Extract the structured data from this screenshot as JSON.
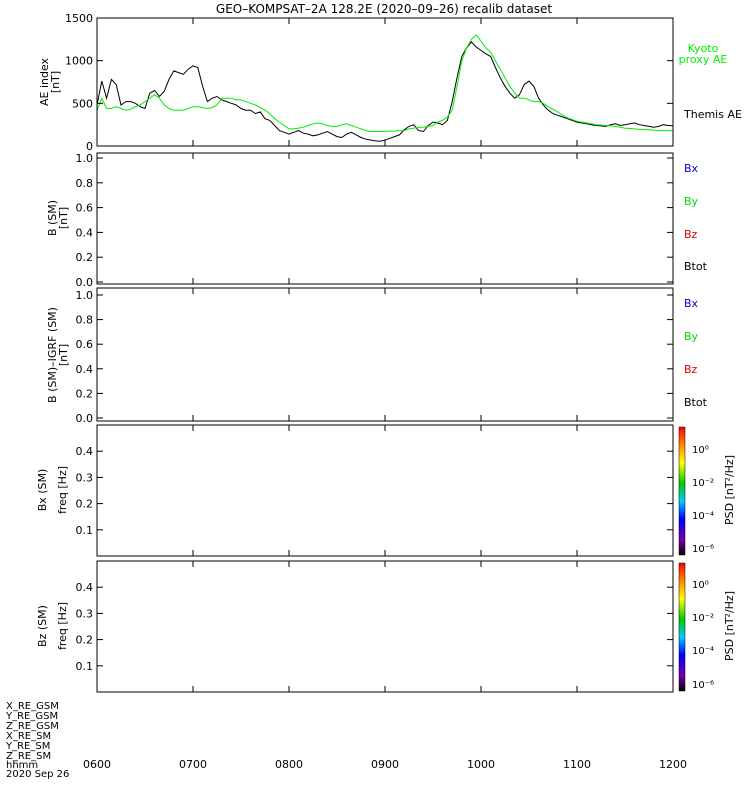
{
  "title": "GEO–KOMPSAT–2A 128.2E (2020–09–26) recalib dataset",
  "x_axis": {
    "tick_labels": [
      "0600",
      "0700",
      "0800",
      "0900",
      "1000",
      "1100",
      "1200"
    ],
    "row_labels": [
      "X_RE_GSM",
      "Y_RE_GSM",
      "Z_RE_GSM",
      "X_RE_SM",
      "Y_RE_SM",
      "Z_RE_SM",
      "hhmm",
      "2020 Sep 26"
    ]
  },
  "panels": {
    "ae": {
      "ylabel": "AE index",
      "yunit": "[nT]",
      "ticks": [
        "0",
        "500",
        "1000",
        "1500"
      ],
      "legend": [
        {
          "text": "Kyoto",
          "color": "#00ee00"
        },
        {
          "text": "proxy AE",
          "color": "#00ee00"
        },
        {
          "text": "Themis AE",
          "color": "#000000"
        }
      ]
    },
    "b": {
      "ylabel": "B (SM)",
      "yunit": "[nT]",
      "ticks": [
        "0.0",
        "0.2",
        "0.4",
        "0.6",
        "0.8",
        "1.0"
      ],
      "legend": [
        {
          "text": "Bx",
          "color": "#0000cc"
        },
        {
          "text": "By",
          "color": "#00dd00"
        },
        {
          "text": "Bz",
          "color": "#dd0000"
        },
        {
          "text": "Btot",
          "color": "#000000"
        }
      ]
    },
    "bigrf": {
      "ylabel": "B (SM)–IGRF (SM)",
      "yunit": "[nT]",
      "ticks": [
        "0.0",
        "0.2",
        "0.4",
        "0.6",
        "0.8",
        "1.0"
      ],
      "legend": [
        {
          "text": "Bx",
          "color": "#0000cc"
        },
        {
          "text": "By",
          "color": "#00dd00"
        },
        {
          "text": "Bz",
          "color": "#dd0000"
        },
        {
          "text": "Btot",
          "color": "#000000"
        }
      ]
    },
    "bx_spec": {
      "ylabel1": "Bx (SM)",
      "ylabel2": "freq [Hz]",
      "ticks": [
        "0.1",
        "0.2",
        "0.3",
        "0.4"
      ],
      "colorbar_label": "PSD [nT²/Hz]",
      "colorbar_ticks": [
        "10⁰",
        "10⁻²",
        "10⁻⁴",
        "10⁻⁶"
      ]
    },
    "bz_spec": {
      "ylabel1": "Bz (SM)",
      "ylabel2": "freq [Hz]",
      "ticks": [
        "0.1",
        "0.2",
        "0.3",
        "0.4"
      ],
      "colorbar_label": "PSD [nT²/Hz]",
      "colorbar_ticks": [
        "10⁰",
        "10⁻²",
        "10⁻⁴",
        "10⁻⁶"
      ]
    }
  },
  "chart_data": [
    {
      "type": "line",
      "title": "GEO–KOMPSAT–2A 128.2E (2020–09–26) recalib dataset",
      "xlabel": "hhmm",
      "ylabel": "AE index [nT]",
      "xlim": [
        6,
        12
      ],
      "ylim": [
        0,
        1500
      ],
      "series": [
        {
          "name": "Themis AE",
          "color": "#000000",
          "x": [
            6.0,
            6.05,
            6.1,
            6.15,
            6.2,
            6.25,
            6.3,
            6.35,
            6.4,
            6.45,
            6.5,
            6.55,
            6.6,
            6.65,
            6.7,
            6.75,
            6.8,
            6.85,
            6.9,
            6.95,
            7.0,
            7.05,
            7.1,
            7.15,
            7.2,
            7.25,
            7.3,
            7.35,
            7.4,
            7.45,
            7.5,
            7.55,
            7.6,
            7.65,
            7.7,
            7.75,
            7.8,
            7.85,
            7.9,
            7.95,
            8.0,
            8.05,
            8.1,
            8.15,
            8.2,
            8.25,
            8.3,
            8.35,
            8.4,
            8.45,
            8.5,
            8.55,
            8.6,
            8.65,
            8.7,
            8.75,
            8.8,
            8.85,
            8.9,
            8.95,
            9.0,
            9.05,
            9.1,
            9.15,
            9.2,
            9.25,
            9.3,
            9.35,
            9.4,
            9.45,
            9.5,
            9.55,
            9.6,
            9.65,
            9.7,
            9.75,
            9.8,
            9.85,
            9.9,
            9.95,
            10.0,
            10.05,
            10.1,
            10.15,
            10.2,
            10.25,
            10.3,
            10.35,
            10.4,
            10.45,
            10.5,
            10.55,
            10.6,
            10.65,
            10.7,
            10.75,
            10.8,
            10.85,
            10.9,
            10.95,
            11.0,
            11.05,
            11.1,
            11.15,
            11.2,
            11.25,
            11.3,
            11.35,
            11.4,
            11.45,
            11.5,
            11.55,
            11.6,
            11.65,
            11.7,
            11.75,
            11.8,
            11.85,
            11.9,
            11.95,
            12.0
          ],
          "values": [
            480,
            760,
            560,
            780,
            720,
            480,
            520,
            520,
            500,
            460,
            440,
            620,
            650,
            580,
            640,
            780,
            880,
            860,
            840,
            900,
            940,
            920,
            700,
            520,
            560,
            580,
            540,
            520,
            500,
            480,
            440,
            420,
            420,
            380,
            400,
            320,
            300,
            240,
            180,
            160,
            140,
            160,
            180,
            150,
            140,
            120,
            130,
            150,
            170,
            140,
            110,
            100,
            140,
            160,
            130,
            100,
            80,
            70,
            60,
            55,
            70,
            90,
            110,
            130,
            190,
            230,
            250,
            180,
            170,
            240,
            280,
            270,
            250,
            300,
            520,
            800,
            1050,
            1150,
            1220,
            1160,
            1120,
            1080,
            1050,
            920,
            800,
            700,
            620,
            560,
            600,
            720,
            760,
            700,
            560,
            480,
            420,
            380,
            360,
            340,
            320,
            300,
            280,
            270,
            260,
            250,
            240,
            235,
            230,
            250,
            260,
            240,
            250,
            260,
            270,
            250,
            240,
            230,
            220,
            230,
            250,
            240,
            235
          ]
        },
        {
          "name": "Kyoto proxy AE",
          "color": "#00ee00",
          "x": [
            6.0,
            6.05,
            6.1,
            6.15,
            6.2,
            6.25,
            6.3,
            6.35,
            6.4,
            6.45,
            6.5,
            6.55,
            6.6,
            6.65,
            6.7,
            6.75,
            6.8,
            6.85,
            6.9,
            6.95,
            7.0,
            7.05,
            7.1,
            7.15,
            7.2,
            7.25,
            7.3,
            7.35,
            7.4,
            7.45,
            7.5,
            7.55,
            7.6,
            7.65,
            7.7,
            7.75,
            7.8,
            7.85,
            7.9,
            7.95,
            8.0,
            8.05,
            8.1,
            8.15,
            8.2,
            8.25,
            8.3,
            8.35,
            8.4,
            8.45,
            8.5,
            8.55,
            8.6,
            8.65,
            8.7,
            8.75,
            8.8,
            8.85,
            8.9,
            8.95,
            9.0,
            9.05,
            9.1,
            9.15,
            9.2,
            9.25,
            9.3,
            9.35,
            9.4,
            9.45,
            9.5,
            9.55,
            9.6,
            9.65,
            9.7,
            9.75,
            9.8,
            9.85,
            9.9,
            9.95,
            10.0,
            10.05,
            10.1,
            10.15,
            10.2,
            10.25,
            10.3,
            10.35,
            10.4,
            10.45,
            10.5,
            10.55,
            10.6,
            10.65,
            10.7,
            10.75,
            10.8,
            10.85,
            10.9,
            10.95,
            11.0,
            11.05,
            11.1,
            11.15,
            11.2,
            11.25,
            11.3,
            11.35,
            11.4,
            11.45,
            11.5,
            11.55,
            11.6,
            11.65,
            11.7,
            11.75,
            11.8,
            11.85,
            11.9,
            11.95,
            12.0
          ],
          "values": [
            420,
            560,
            440,
            440,
            460,
            440,
            420,
            430,
            460,
            480,
            520,
            560,
            600,
            560,
            480,
            440,
            420,
            420,
            420,
            440,
            460,
            460,
            450,
            440,
            450,
            480,
            560,
            560,
            560,
            540,
            540,
            520,
            500,
            480,
            450,
            420,
            380,
            320,
            280,
            240,
            200,
            200,
            210,
            220,
            240,
            260,
            270,
            260,
            240,
            230,
            230,
            250,
            260,
            240,
            220,
            200,
            180,
            170,
            170,
            170,
            170,
            175,
            175,
            180,
            180,
            200,
            210,
            220,
            220,
            230,
            240,
            280,
            300,
            340,
            420,
            700,
            1000,
            1150,
            1250,
            1300,
            1230,
            1150,
            1100,
            1000,
            900,
            800,
            700,
            620,
            560,
            560,
            540,
            520,
            520,
            500,
            460,
            430,
            400,
            360,
            330,
            310,
            290,
            280,
            270,
            260,
            250,
            245,
            240,
            235,
            230,
            220,
            210,
            205,
            200,
            195,
            190,
            190,
            185,
            180,
            180,
            180,
            178
          ]
        }
      ]
    },
    {
      "type": "line",
      "ylabel": "B (SM) [nT]",
      "ylim": [
        0,
        1
      ],
      "series": []
    },
    {
      "type": "line",
      "ylabel": "B (SM)–IGRF (SM) [nT]",
      "ylim": [
        0,
        1
      ],
      "series": []
    },
    {
      "type": "heatmap",
      "ylabel": "Bx (SM) freq [Hz]",
      "ylim": [
        0,
        0.5
      ],
      "colorbar": "PSD [nT²/Hz]",
      "values": []
    },
    {
      "type": "heatmap",
      "ylabel": "Bz (SM) freq [Hz]",
      "ylim": [
        0,
        0.5
      ],
      "colorbar": "PSD [nT²/Hz]",
      "values": []
    }
  ]
}
